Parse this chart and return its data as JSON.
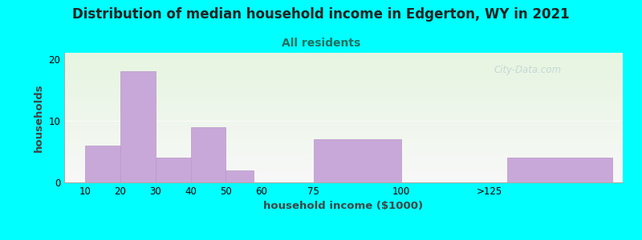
{
  "title": "Distribution of median household income in Edgerton, WY in 2021",
  "subtitle": "All residents",
  "xlabel": "household income ($1000)",
  "ylabel": "households",
  "background_color": "#00FFFF",
  "plot_bg_top": "#e6f5e0",
  "plot_bg_bottom": "#f8f8f8",
  "bar_color": "#c8a8d8",
  "bar_edge_color": "#b898c8",
  "x_positions": [
    10,
    20,
    30,
    40,
    50,
    65,
    75,
    105,
    130
  ],
  "bar_widths": [
    10,
    10,
    10,
    10,
    8,
    12,
    25,
    22,
    30
  ],
  "values": [
    6,
    18,
    4,
    9,
    2,
    0,
    7,
    0,
    4
  ],
  "xlim": [
    4,
    163
  ],
  "ylim": [
    0,
    21
  ],
  "yticks": [
    0,
    10,
    20
  ],
  "xtick_positions": [
    10,
    20,
    30,
    40,
    50,
    60,
    75,
    100,
    125
  ],
  "xtick_labels": [
    "10",
    "20",
    "30",
    "40",
    "50",
    "60",
    "75",
    "100",
    ">125"
  ],
  "title_fontsize": 12,
  "subtitle_fontsize": 10,
  "axis_label_fontsize": 9.5,
  "tick_fontsize": 8.5,
  "watermark_text": "City-Data.com",
  "watermark_color": "#a8c0cc",
  "watermark_alpha": 0.55,
  "subtitle_color": "#207060",
  "title_color": "#222222",
  "ylabel_color": "#444444",
  "xlabel_color": "#444444"
}
